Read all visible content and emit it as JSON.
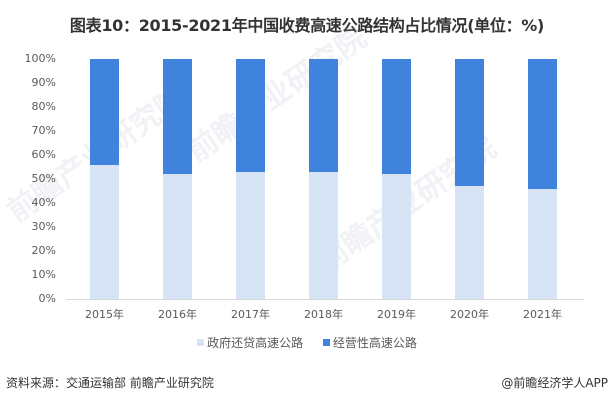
{
  "title": "图表10：2015-2021年中国收费高速公路结构占比情况(单位：%)",
  "chart_data": {
    "type": "bar",
    "stacked": true,
    "title": "图表10：2015-2021年中国收费高速公路结构占比情况(单位：%)",
    "categories": [
      "2015年",
      "2016年",
      "2017年",
      "2018年",
      "2019年",
      "2020年",
      "2021年"
    ],
    "series": [
      {
        "name": "政府还贷高速公路",
        "color": "#d6e4f6",
        "values": [
          56,
          52,
          53,
          53,
          52,
          47,
          46
        ]
      },
      {
        "name": "经营性高速公路",
        "color": "#3f83dc",
        "values": [
          44,
          48,
          47,
          47,
          48,
          53,
          54
        ]
      }
    ],
    "y_ticks": [
      "0%",
      "10%",
      "20%",
      "30%",
      "40%",
      "50%",
      "60%",
      "70%",
      "80%",
      "90%",
      "100%"
    ],
    "ylim": [
      0,
      100
    ],
    "xlabel": "",
    "ylabel": "",
    "grid": false,
    "legend_position": "bottom"
  },
  "legend": {
    "items": [
      {
        "label": "政府还贷高速公路",
        "color": "#d6e4f6"
      },
      {
        "label": "经营性高速公路",
        "color": "#3f83dc"
      }
    ]
  },
  "footer": {
    "source": "资料来源：交通运输部 前瞻产业研究院",
    "credit": "@前瞻经济学人APP"
  },
  "watermark": "前瞻产业研究院"
}
